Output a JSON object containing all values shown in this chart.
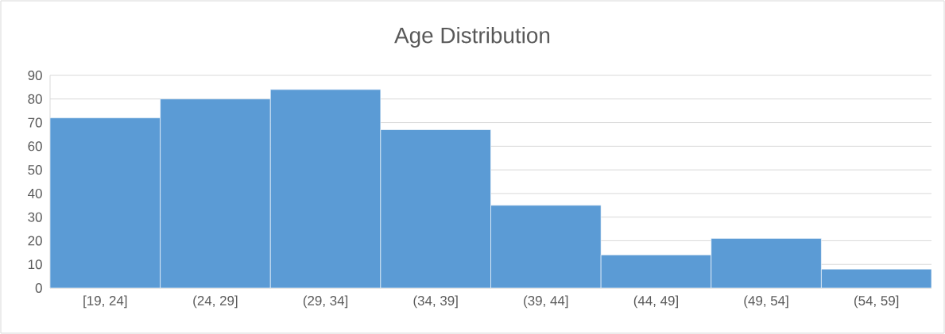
{
  "chart_data": {
    "type": "bar",
    "title": "Age Distribution",
    "categories": [
      "[19, 24]",
      "(24, 29]",
      "(29, 34]",
      "(34, 39]",
      "(39, 44]",
      "(44, 49]",
      "(49, 54]",
      "(54, 59]"
    ],
    "values": [
      72,
      80,
      84,
      67,
      35,
      14,
      21,
      8
    ],
    "color": "#5b9bd5",
    "ylim": [
      0,
      90
    ],
    "yticks": [
      0,
      10,
      20,
      30,
      40,
      50,
      60,
      70,
      80,
      90
    ],
    "grid": "y"
  }
}
